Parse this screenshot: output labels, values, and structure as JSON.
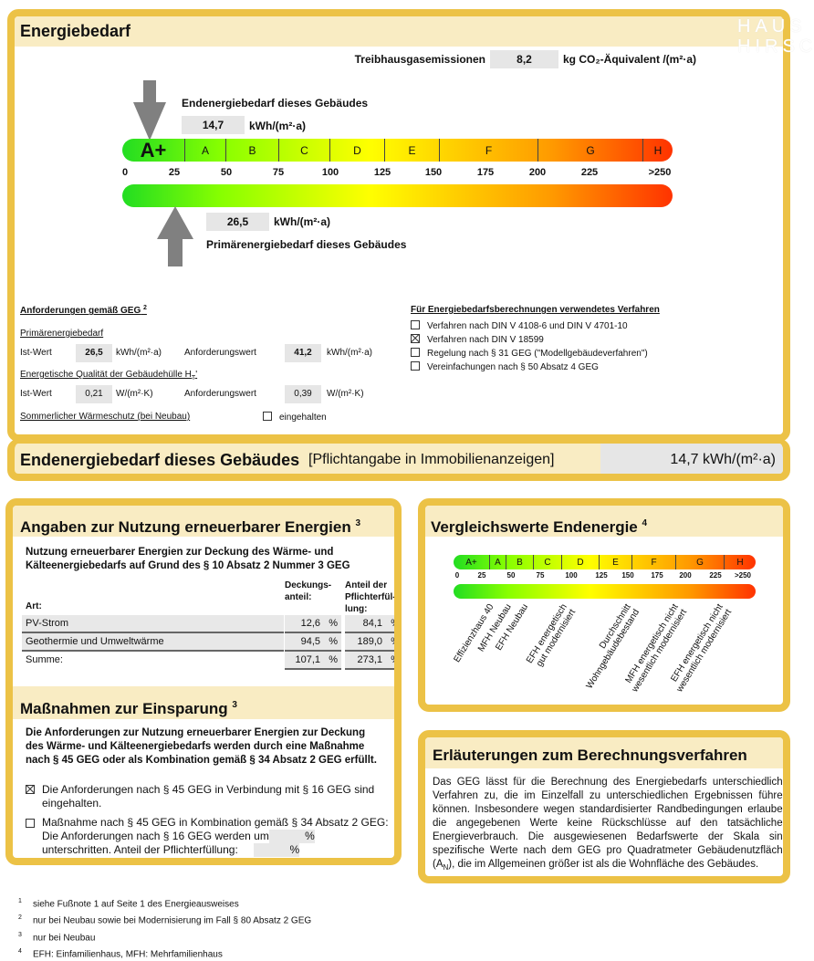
{
  "watermark": "HAUS HIRSCH",
  "energiebedarf": {
    "title": "Energiebedarf",
    "ghg_label": "Treibhausgasemissionen",
    "ghg_value": "8,2",
    "ghg_unit": "kg CO₂-Äquivalent /(m²·a)",
    "end_label": "Endenergiebedarf dieses Gebäudes",
    "end_value": "14,7",
    "end_unit": "kWh/(m²·a)",
    "end_value_num": 14.7,
    "prim_label": "Primärenergiebedarf dieses Gebäudes",
    "prim_value": "26,5",
    "prim_unit": "kWh/(m²·a)",
    "prim_value_num": 26.5,
    "classes": [
      "A+",
      "A",
      "B",
      "C",
      "D",
      "E",
      "F",
      "G",
      "H"
    ],
    "ticks": [
      "0",
      "25",
      "50",
      "75",
      "100",
      "125",
      "150",
      "175",
      "200",
      "225",
      ">250"
    ],
    "req": {
      "title": "Anforderungen gemäß GEG",
      "title_sup": "2",
      "prim_title": "Primärenergiebedarf",
      "ist_label": "Ist-Wert",
      "ist_prim": "26,5",
      "prim_unit": "kWh/(m²·a)",
      "anf_label": "Anforderungswert",
      "anf_prim": "41,2",
      "ht_title": "Energetische Qualität der Gebäudehülle H",
      "ht_sub": "T",
      "ht_suffix": "'",
      "ist_ht": "0,21",
      "ht_unit": "W/(m²·K)",
      "anf_ht": "0,39",
      "summer": "Sommerlicher Wärmeschutz (bei Neubau)",
      "summer_check": "eingehalten",
      "summer_checked": false
    },
    "method": {
      "title": "Für Energiebedarfsberechnungen verwendetes Verfahren",
      "options": [
        {
          "label": "Verfahren nach DIN V 4108-6 und DIN V 4701-10",
          "checked": false
        },
        {
          "label": "Verfahren nach DIN V 18599",
          "checked": true
        },
        {
          "label": "Regelung nach § 31 GEG (\"Modellgebäudeverfahren\")",
          "checked": false
        },
        {
          "label": "Vereinfachungen nach § 50 Absatz 4 GEG",
          "checked": false
        }
      ]
    }
  },
  "summary": {
    "label": "Endenergiebedarf dieses Gebäudes",
    "note": "[Pflichtangabe in Immobilienanzeigen]",
    "value": "14,7 kWh/(m²·a)"
  },
  "renewables": {
    "title": "Angaben zur Nutzung erneuerbarer Energien",
    "sup": "3",
    "intro": "Nutzung erneuerbarer Energien zur Deckung des Wärme- und Kälteenergiebedarfs auf Grund des § 10 Absatz 2 Nummer 3 GEG",
    "col_art": "Art:",
    "col_deck": "Deckungs-anteil:",
    "col_anteil": "Anteil der Pflichterfül-lung:",
    "rows": [
      {
        "art": "PV-Strom",
        "deck": "12,6",
        "anteil": "84,1"
      },
      {
        "art": "Geothermie und Umweltwärme",
        "deck": "94,5",
        "anteil": "189,0"
      },
      {
        "art": "Summe:",
        "deck": "107,1",
        "anteil": "273,1"
      }
    ],
    "pct": "%"
  },
  "measures": {
    "title": "Maßnahmen zur Einsparung",
    "sup": "3",
    "intro": "Die Anforderungen zur Nutzung erneuerbarer Energien zur Deckung des Wärme- und Kälteenergiebedarfs werden durch eine Maßnahme nach § 45 GEG oder als Kombination gemäß § 34 Absatz 2 GEG erfüllt.",
    "opt1": "Die Anforderungen nach § 45 GEG in Verbindung mit § 16 GEG sind eingehalten.",
    "opt1_checked": true,
    "opt2a": "Maßnahme nach § 45 GEG in Kombination gemäß § 34 Absatz 2 GEG: Die Anforderungen nach § 16 GEG werden um",
    "opt2b": "unterschritten. Anteil der Pflichterfüllung:",
    "opt2_checked": false,
    "pct": "%"
  },
  "comparison": {
    "title": "Vergleichswerte Endenergie",
    "sup": "4",
    "classes": [
      "A+",
      "A",
      "B",
      "C",
      "D",
      "E",
      "F",
      "G",
      "H"
    ],
    "ticks": [
      "0",
      "25",
      "50",
      "75",
      "100",
      "125",
      "150",
      "175",
      "200",
      "225",
      ">250"
    ],
    "refs": [
      "Effizienzhaus 40",
      "MFH Neubau",
      "EFH Neubau",
      "EFH energetisch\ngut modernisiert",
      "Durchschnitt\nWohngebäudebestand",
      "MFH energetisch nicht\nwesentlich modernisiert",
      "EFH energetisch nicht\nwesentlich modernisiert"
    ]
  },
  "explanation": {
    "title": "Erläuterungen zum Berechnungsverfahren",
    "text": "Das GEG lässt für die Berechnung des Energiebedarfs unterschiedliche Verfahren zu, die im Einzelfall zu unterschiedlichen Ergebnissen führen können. Insbesondere wegen standardisierter Randbedingungen erlauben die angegebenen Werte keine Rückschlüsse auf den tatsächlichen Energieverbrauch. Die ausgewiesenen Bedarfswerte der Skala sind spezifische Werte nach dem GEG pro Quadratmeter Gebäudenutzfläche (A",
    "text_sub": "N",
    "text_end": "), die im Allgemeinen größer ist als die Wohnfläche des Gebäudes."
  },
  "footnotes": [
    {
      "n": "1",
      "text": "siehe Fußnote 1 auf Seite 1 des Energieausweises"
    },
    {
      "n": "2",
      "text": "nur bei Neubau sowie bei Modernisierung im Fall § 80 Absatz 2 GEG"
    },
    {
      "n": "3",
      "text": "nur bei Neubau"
    },
    {
      "n": "4",
      "text": "EFH: Einfamilienhaus, MFH: Mehrfamilienhaus"
    }
  ]
}
